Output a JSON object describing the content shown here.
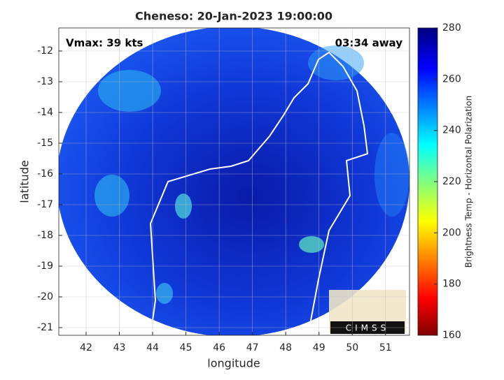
{
  "chart_data": {
    "type": "map",
    "title": "Cheneso: 20-Jan-2023 19:00:00",
    "xlabel": "longitude",
    "ylabel": "latitude",
    "xlim": [
      41.18,
      51.72
    ],
    "ylim": [
      -21.25,
      -11.25
    ],
    "xticks": [
      42,
      43,
      44,
      45,
      46,
      47,
      48,
      49,
      50,
      51
    ],
    "yticks": [
      -12,
      -13,
      -14,
      -15,
      -16,
      -17,
      -18,
      -19,
      -20,
      -21
    ],
    "grid": true,
    "annotations": [
      "Vmax: 39 kts",
      "03:34 away"
    ],
    "logo": "CIMSS",
    "colorbar": {
      "label": "Brightness Temp - Horizontal Polarization",
      "lim": [
        160,
        280
      ],
      "ticks": [
        160,
        180,
        200,
        220,
        240,
        260,
        280
      ]
    }
  }
}
